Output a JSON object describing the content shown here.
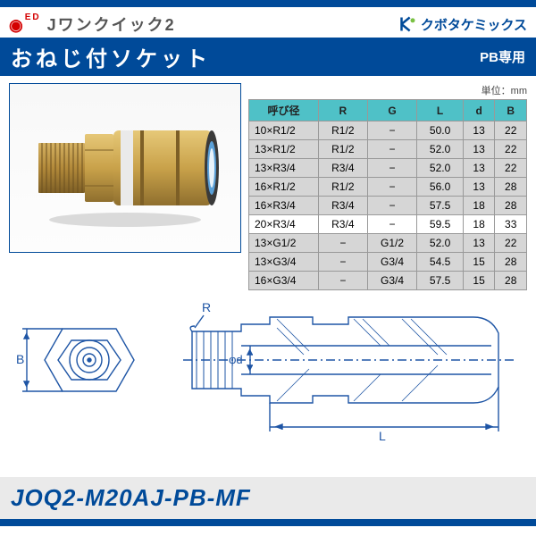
{
  "header": {
    "brand_series": "Jワンクイック2",
    "company": "クボタケミックス"
  },
  "title_band": {
    "title": "おねじ付ソケット",
    "subtitle": "PB専用"
  },
  "table": {
    "unit_label": "単位：mm",
    "columns": [
      "呼び径",
      "R",
      "G",
      "L",
      "d",
      "B"
    ],
    "rows": [
      {
        "cells": [
          "10×R1/2",
          "R1/2",
          "−",
          "50.0",
          "13",
          "22"
        ],
        "shade": "grey"
      },
      {
        "cells": [
          "13×R1/2",
          "R1/2",
          "−",
          "52.0",
          "13",
          "22"
        ],
        "shade": "grey"
      },
      {
        "cells": [
          "13×R3/4",
          "R3/4",
          "−",
          "52.0",
          "13",
          "22"
        ],
        "shade": "grey"
      },
      {
        "cells": [
          "16×R1/2",
          "R1/2",
          "−",
          "56.0",
          "13",
          "28"
        ],
        "shade": "grey"
      },
      {
        "cells": [
          "16×R3/4",
          "R3/4",
          "−",
          "57.5",
          "18",
          "28"
        ],
        "shade": "grey"
      },
      {
        "cells": [
          "20×R3/4",
          "R3/4",
          "−",
          "59.5",
          "18",
          "33"
        ],
        "shade": "white"
      },
      {
        "cells": [
          "13×G1/2",
          "−",
          "G1/2",
          "52.0",
          "13",
          "22"
        ],
        "shade": "grey"
      },
      {
        "cells": [
          "13×G3/4",
          "−",
          "G3/4",
          "54.5",
          "15",
          "28"
        ],
        "shade": "grey"
      },
      {
        "cells": [
          "16×G3/4",
          "−",
          "G3/4",
          "57.5",
          "15",
          "28"
        ],
        "shade": "grey"
      }
    ]
  },
  "diagram_labels": {
    "R": "R",
    "B": "B",
    "phi_d": "φd",
    "L": "L"
  },
  "model": "JOQ2-M20AJ-PB-MF",
  "colors": {
    "primary": "#004a99",
    "header_cell": "#4fc1c7",
    "grey_row": "#d6d6d6",
    "white_row": "#ffffff",
    "brass": "#c9a24a",
    "brass_dark": "#8f6f2e",
    "diagram_line": "#1e55a5"
  }
}
